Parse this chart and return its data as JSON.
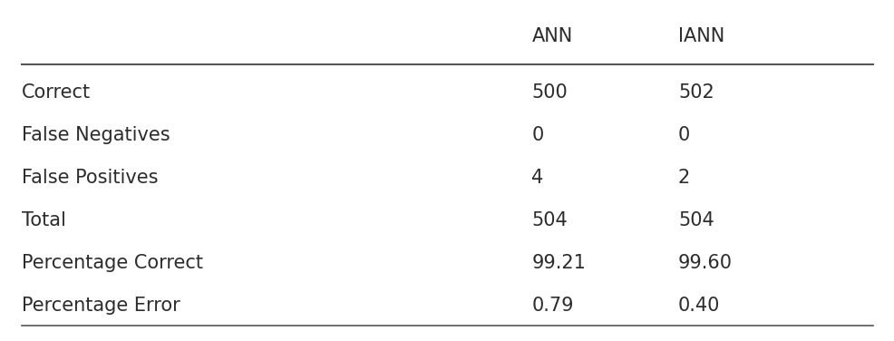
{
  "col_headers": [
    "",
    "ANN",
    "IANN"
  ],
  "rows": [
    [
      "Correct",
      "500",
      "502"
    ],
    [
      "False Negatives",
      "0",
      "0"
    ],
    [
      "False Positives",
      "4",
      "2"
    ],
    [
      "Total",
      "504",
      "504"
    ],
    [
      "Percentage Correct",
      "99.21",
      "99.60"
    ],
    [
      "Percentage Error",
      "0.79",
      "0.40"
    ]
  ],
  "bg_color": "#ffffff",
  "text_color": "#2c2c2c",
  "header_color": "#2c2c2c",
  "line_color": "#555555",
  "font_size": 15,
  "header_font_size": 15,
  "fig_width": 9.87,
  "fig_height": 3.76
}
